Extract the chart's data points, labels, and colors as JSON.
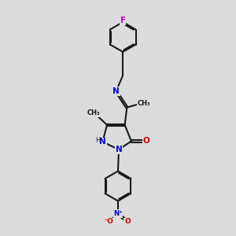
{
  "bg": "#dcdcdc",
  "bc": "#1a1a1a",
  "bw": 1.5,
  "off": 0.07,
  "col": {
    "N": "#0000dd",
    "O": "#cc0000",
    "F": "#cc00cc",
    "C": "#1a1a1a",
    "H": "#1a1a1a"
  },
  "fa": 7.5,
  "fs": 6.0,
  "xlim": [
    2.5,
    7.5
  ],
  "ylim": [
    0.0,
    14.5
  ]
}
